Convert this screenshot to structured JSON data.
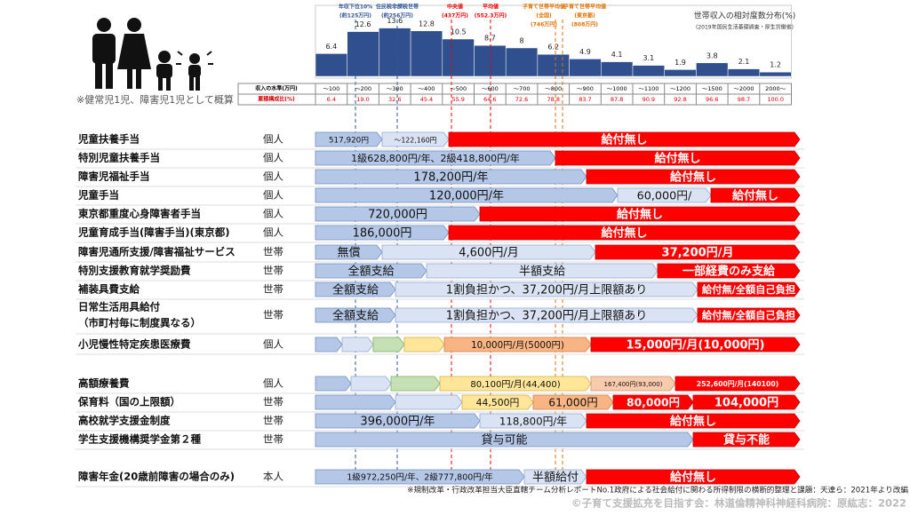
{
  "chart_data": {
    "type": "bar",
    "title": "世帯収入の相対度数分布(%)",
    "subtitle": "(2019年国民生活基礎調査・厚生労働省)",
    "categories": [
      "～100",
      "～200",
      "～300",
      "～400",
      "～500",
      "～600",
      "～700",
      "～800",
      "～900",
      "～1000",
      "～1100",
      "～1200",
      "～1500",
      "～2000",
      "2000～"
    ],
    "values": [
      6.4,
      12.6,
      13.6,
      12.8,
      10.5,
      8.7,
      8,
      6.2,
      4.9,
      4.1,
      3.1,
      1.9,
      3.8,
      2.1,
      1.2
    ],
    "color": "#2f4f8f",
    "annotations": [
      [
        "年収下位10%",
        "(約125万円)"
      ],
      [
        "住民税非課税世帯",
        "(約256万円)"
      ],
      [
        "中央値",
        "(437万円)"
      ],
      [
        "平均値",
        "(552.3万円)"
      ],
      [
        "子育て世帯平均値",
        "(全国)",
        "(746万円)"
      ],
      [
        "子育て世帯平均値",
        "(東京都)",
        "(808万円)"
      ]
    ]
  },
  "income_table": {
    "row_labels": [
      "収入の水準(万円)",
      "累積構成比(%)"
    ],
    "cumulative": [
      "6.4",
      "19.0",
      "32.6",
      "45.4",
      "55.9",
      "64.6",
      "72.6",
      "78.8",
      "83.7",
      "87.8",
      "90.9",
      "92.8",
      "96.6",
      "98.7",
      "100.0"
    ]
  },
  "note": "※健常児1児、障害児1児として概算",
  "rows": [
    {
      "name": [
        "児童扶養手当"
      ],
      "unit": "個人",
      "segments": [
        "517,920円",
        "～122,160円",
        "給付無し"
      ]
    },
    {
      "name": [
        "特別児童扶養手当"
      ],
      "unit": "個人",
      "segments": [
        "1級628,800円/年、2級418,800円/年",
        "給付無し"
      ]
    },
    {
      "name": [
        "障害児福祉手当"
      ],
      "unit": "個人",
      "segments": [
        "178,200円/年",
        "給付無し"
      ]
    },
    {
      "name": [
        "児童手当"
      ],
      "unit": "個人",
      "segments": [
        "120,000円/年",
        "60,000円/",
        "給付無し"
      ]
    },
    {
      "name": [
        "東京都重度心身障害者手当"
      ],
      "unit": "個人",
      "segments": [
        "720,000円",
        "給付無し"
      ]
    },
    {
      "name": [
        "児童育成手当(障害手当)(東京都)"
      ],
      "unit": "個人",
      "segments": [
        "186,000円",
        "給付無し"
      ]
    },
    {
      "name": [
        "障害児通所支援/障害福祉サービス"
      ],
      "unit": "世帯",
      "segments": [
        "無償",
        "4,600円/月",
        "37,200円/月"
      ]
    },
    {
      "name": [
        "特別支援教育就学奨励費"
      ],
      "unit": "世帯",
      "segments": [
        "全額支給",
        "半額支給",
        "一部経費のみ支給"
      ]
    },
    {
      "name": [
        "補装具費支給"
      ],
      "unit": "世帯",
      "segments": [
        "全額支給",
        "1割負担かつ、37,200円/月上限額あり",
        "給付無/全額自己負担"
      ]
    },
    {
      "name": [
        "日常生活用具給付",
        "（市町村毎に制度異なる）"
      ],
      "unit": "世帯",
      "segments": [
        "全額支給",
        "1割負担かつ、37,200円/月上限額あり",
        "給付無/全額自己負担"
      ]
    },
    {
      "name": [
        "小児慢性特定疾患医療費"
      ],
      "unit": "個人",
      "segments": [
        "10,000円/月(5000円)",
        "15,000円/月(10,000円)"
      ]
    },
    {
      "name": [
        "高額療養費"
      ],
      "unit": "個人",
      "segments": [
        "80,100円/月(44,400)",
        "167,400円(93,000)",
        "252,600円/月(140100)"
      ]
    },
    {
      "name": [
        "保育料（国の上限額）"
      ],
      "unit": "世帯",
      "segments": [
        "44,500円",
        "61,000円",
        "80,000円",
        "104,000円"
      ]
    },
    {
      "name": [
        "高校就学支援金制度"
      ],
      "unit": "世帯",
      "segments": [
        "396,000円/年",
        "118,800円/年",
        "給付無し"
      ]
    },
    {
      "name": [
        "学生支援機構奨学金第２種"
      ],
      "unit": "世帯",
      "segments": [
        "貸与可能",
        "貸与不能"
      ]
    },
    {
      "name": [
        "障害年金(20歳前障害の場合のみ)"
      ],
      "unit": "本人",
      "segments": [
        "1級972,250円/年、2級777,800円/年",
        "半額給付",
        "給付無し"
      ]
    }
  ],
  "footnote": "※規制改革・行政改革担当大臣直轄チーム分析レポートNo.1政府による社会給付に関わる所得制限の横断的整理と課題：天達ら：2021年より改編",
  "copyright": "©子育て支援拡充を目指す会：林道倫精神科神経科病院：原紘志：2022"
}
